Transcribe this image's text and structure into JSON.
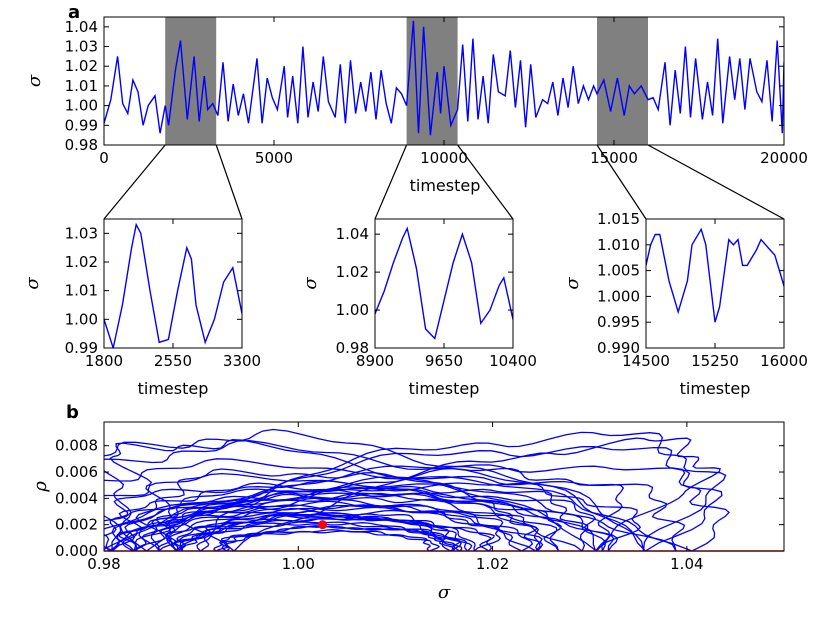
{
  "figure": {
    "panel_a_label": "a",
    "panel_b_label": "b"
  },
  "colors": {
    "series": "#0000ff",
    "shade": "#808080",
    "fixed_point": "#ff0000",
    "baseline": "#ff0000"
  },
  "chart_data": [
    {
      "id": "a-main",
      "type": "line",
      "xlabel": "timestep",
      "ylabel": "σ",
      "xlim": [
        0,
        20000
      ],
      "ylim": [
        0.98,
        1.045
      ],
      "xticks": [
        "0",
        "5000",
        "10000",
        "15000",
        "20000"
      ],
      "yticks": [
        "0.98",
        "0.99",
        "1.00",
        "1.01",
        "1.02",
        "1.03",
        "1.04"
      ],
      "shaded_ranges": [
        [
          1800,
          3300
        ],
        [
          8900,
          10400
        ],
        [
          14500,
          16000
        ]
      ],
      "series": [
        {
          "name": "sigma",
          "x": [
            0,
            200,
            400,
            550,
            700,
            850,
            1000,
            1150,
            1300,
            1500,
            1650,
            1800,
            1900,
            2100,
            2250,
            2450,
            2650,
            2800,
            2950,
            3050,
            3200,
            3350,
            3500,
            3650,
            3800,
            3950,
            4100,
            4250,
            4500,
            4650,
            4800,
            4950,
            5100,
            5300,
            5400,
            5550,
            5700,
            5850,
            6000,
            6150,
            6300,
            6450,
            6600,
            6800,
            6950,
            7100,
            7250,
            7400,
            7550,
            7700,
            7850,
            8000,
            8150,
            8300,
            8450,
            8600,
            8750,
            8900,
            9100,
            9250,
            9400,
            9600,
            9800,
            9900,
            10000,
            10200,
            10400,
            10550,
            10700,
            10850,
            11000,
            11150,
            11300,
            11450,
            11600,
            11800,
            11950,
            12100,
            12250,
            12400,
            12550,
            12700,
            12900,
            13050,
            13200,
            13350,
            13500,
            13650,
            13800,
            13950,
            14100,
            14250,
            14400,
            14500,
            14700,
            14900,
            15100,
            15300,
            15450,
            15600,
            15800,
            16000,
            16150,
            16300,
            16500,
            16650,
            16800,
            16950,
            17100,
            17250,
            17400,
            17600,
            17750,
            17900,
            18050,
            18200,
            18400,
            18550,
            18700,
            18850,
            19000,
            19200,
            19350,
            19500,
            19650,
            19800,
            19950,
            20000
          ],
          "values": [
            0.991,
            1.003,
            1.025,
            1.001,
            0.996,
            1.013,
            1.007,
            0.99,
            1.0,
            1.005,
            0.986,
            1.0,
            0.99,
            1.018,
            1.033,
            0.993,
            1.025,
            0.992,
            1.015,
            0.998,
            1.001,
            0.995,
            1.022,
            0.992,
            1.011,
            0.995,
            1.006,
            0.991,
            1.024,
            0.991,
            1.014,
            1.004,
            0.998,
            1.02,
            0.994,
            1.015,
            0.991,
            1.03,
            0.994,
            1.012,
            0.997,
            1.025,
            1.002,
            0.994,
            1.021,
            0.991,
            1.023,
            0.996,
            1.012,
            0.997,
            1.017,
            0.993,
            1.018,
            1.001,
            0.991,
            1.009,
            1.006,
            1.0,
            1.043,
            0.986,
            1.04,
            0.985,
            1.017,
            0.996,
            1.02,
            0.99,
            0.998,
            1.031,
            0.992,
            1.034,
            0.993,
            1.015,
            0.991,
            1.026,
            1.007,
            1.005,
            1.028,
            0.999,
            1.023,
            0.989,
            1.021,
            0.994,
            1.003,
            1.001,
            1.012,
            0.995,
            1.014,
            0.999,
            1.02,
            1.001,
            1.01,
            1.003,
            1.01,
            1.006,
            1.013,
            0.997,
            1.014,
            0.995,
            1.01,
            1.006,
            1.01,
            1.003,
            1.004,
            0.998,
            1.022,
            0.99,
            1.018,
            0.996,
            1.03,
            0.994,
            1.024,
            0.993,
            1.012,
            0.995,
            1.034,
            0.991,
            1.025,
            1.003,
            1.024,
            0.998,
            1.024,
            1.007,
            1.002,
            1.023,
            0.992,
            1.033,
            0.986,
            1.022
          ]
        }
      ]
    },
    {
      "id": "a-zoom-1",
      "type": "line",
      "xlabel": "timestep",
      "ylabel": "σ",
      "xlim": [
        1800,
        3300
      ],
      "ylim": [
        0.99,
        1.035
      ],
      "xticks": [
        "1800",
        "2550",
        "3300"
      ],
      "yticks": [
        "0.99",
        "1.00",
        "1.01",
        "1.02",
        "1.03"
      ],
      "series": [
        {
          "name": "sigma",
          "x": [
            1800,
            1900,
            2000,
            2100,
            2150,
            2200,
            2300,
            2400,
            2500,
            2600,
            2700,
            2750,
            2800,
            2900,
            3000,
            3100,
            3200,
            3300
          ],
          "values": [
            1.0,
            0.99,
            1.005,
            1.025,
            1.033,
            1.03,
            1.01,
            0.992,
            0.993,
            1.01,
            1.025,
            1.021,
            1.005,
            0.992,
            1.0,
            1.013,
            1.018,
            1.002
          ]
        }
      ]
    },
    {
      "id": "a-zoom-2",
      "type": "line",
      "xlabel": "timestep",
      "ylabel": "σ",
      "xlim": [
        8900,
        10400
      ],
      "ylim": [
        0.98,
        1.048
      ],
      "xticks": [
        "8900",
        "9650",
        "10400"
      ],
      "yticks": [
        "0.98",
        "1.00",
        "1.02",
        "1.04"
      ],
      "series": [
        {
          "name": "sigma",
          "x": [
            8900,
            9000,
            9100,
            9200,
            9250,
            9350,
            9450,
            9550,
            9650,
            9750,
            9850,
            9950,
            10050,
            10150,
            10250,
            10300,
            10400
          ],
          "values": [
            0.998,
            1.01,
            1.025,
            1.038,
            1.043,
            1.022,
            0.99,
            0.985,
            1.005,
            1.025,
            1.04,
            1.025,
            0.993,
            1.0,
            1.013,
            1.017,
            0.995
          ]
        }
      ]
    },
    {
      "id": "a-zoom-3",
      "type": "line",
      "xlabel": "timestep",
      "ylabel": "σ",
      "xlim": [
        14500,
        16000
      ],
      "ylim": [
        0.99,
        1.015
      ],
      "xticks": [
        "14500",
        "15250",
        "16000"
      ],
      "yticks": [
        "0.990",
        "0.995",
        "1.000",
        "1.005",
        "1.010",
        "1.015"
      ],
      "series": [
        {
          "name": "sigma",
          "x": [
            14500,
            14550,
            14600,
            14650,
            14750,
            14850,
            14950,
            15000,
            15100,
            15150,
            15250,
            15300,
            15400,
            15450,
            15500,
            15550,
            15600,
            15700,
            15750,
            15800,
            15850,
            15900,
            15950,
            16000
          ],
          "values": [
            1.006,
            1.01,
            1.012,
            1.012,
            1.003,
            0.997,
            1.003,
            1.01,
            1.013,
            1.01,
            0.995,
            0.998,
            1.011,
            1.01,
            1.011,
            1.006,
            1.006,
            1.009,
            1.011,
            1.01,
            1.009,
            1.008,
            1.005,
            1.002
          ]
        }
      ]
    },
    {
      "id": "b-phase",
      "type": "line",
      "xlabel": "σ",
      "ylabel": "ρ",
      "xlim": [
        0.98,
        1.05
      ],
      "ylim": [
        0,
        0.0098
      ],
      "xticks": [
        "0.98",
        "1.00",
        "1.02",
        "1.04"
      ],
      "yticks": [
        "0.000",
        "0.002",
        "0.004",
        "0.006",
        "0.008"
      ],
      "fixed_point": {
        "sigma": 1.0025,
        "rho": 0.002
      },
      "baseline_rho": 0,
      "orbits": [
        {
          "c": 1.003,
          "a": 0.02,
          "r": 0.0035,
          "p": 0.0
        },
        {
          "c": 1.003,
          "a": 0.017,
          "r": 0.003,
          "p": 0.001
        },
        {
          "c": 1.004,
          "a": 0.016,
          "r": 0.0025,
          "p": 0.0
        },
        {
          "c": 1.002,
          "a": 0.014,
          "r": 0.0021,
          "p": 0.0
        },
        {
          "c": 1.006,
          "a": 0.026,
          "r": 0.0045,
          "p": 0.0005
        },
        {
          "c": 1.008,
          "a": 0.031,
          "r": 0.0055,
          "p": 0.0012
        },
        {
          "c": 1.009,
          "a": 0.034,
          "r": 0.0065,
          "p": 0.0015
        },
        {
          "c": 1.01,
          "a": 0.032,
          "r": 0.0078,
          "p": 0.0018
        },
        {
          "c": 1.011,
          "a": 0.031,
          "r": 0.0087,
          "p": 0.002
        },
        {
          "c": 1.012,
          "a": 0.03,
          "r": 0.0082,
          "p": 0.003
        },
        {
          "c": 1.009,
          "a": 0.024,
          "r": 0.006,
          "p": 0.0015
        },
        {
          "c": 1.004,
          "a": 0.012,
          "r": 0.0018,
          "p": 0.0
        },
        {
          "c": 1.005,
          "a": 0.019,
          "r": 0.004,
          "p": 0.0008
        },
        {
          "c": 1.003,
          "a": 0.011,
          "r": 0.0015,
          "p": 0.0
        },
        {
          "c": 1.007,
          "a": 0.027,
          "r": 0.005,
          "p": 0.001
        },
        {
          "c": 1.005,
          "a": 0.022,
          "r": 0.0042,
          "p": 0.0004
        },
        {
          "c": 1.004,
          "a": 0.021,
          "r": 0.0033,
          "p": 0.0006
        },
        {
          "c": 1.002,
          "a": 0.015,
          "r": 0.0026,
          "p": 0.0003
        },
        {
          "c": 1.006,
          "a": 0.023,
          "r": 0.0048,
          "p": 0.0011
        },
        {
          "c": 1.003,
          "a": 0.013,
          "r": 0.0028,
          "p": 0.0005
        }
      ]
    }
  ]
}
